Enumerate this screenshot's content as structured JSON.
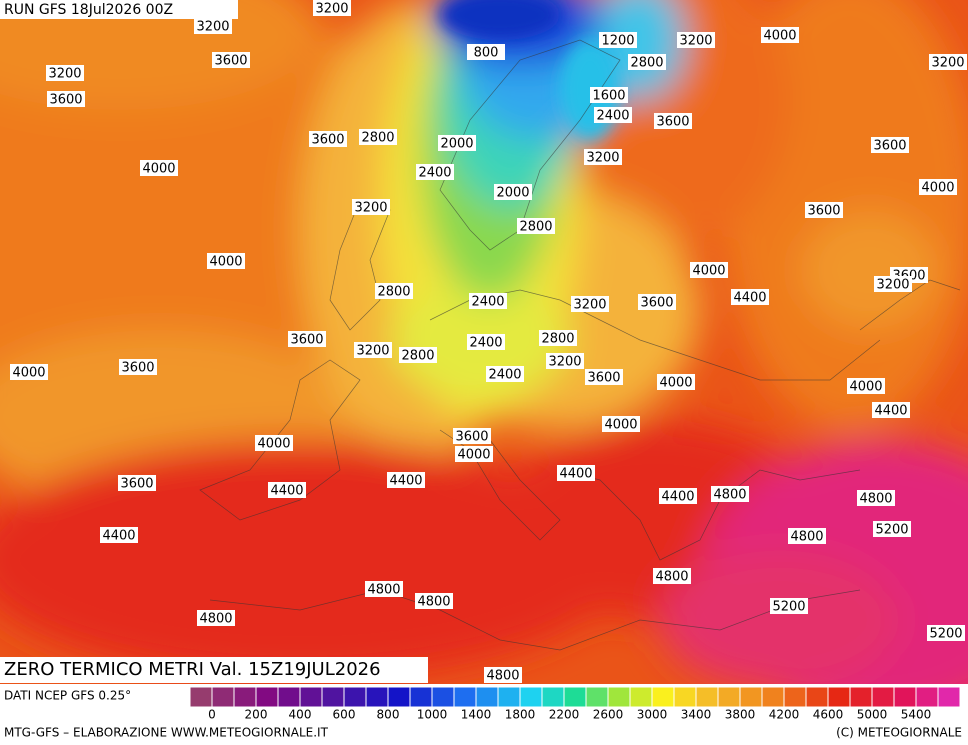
{
  "header": {
    "run": "RUN GFS 18Jul2026 00Z"
  },
  "map": {
    "title": "ZERO TERMICO METRI Val. 15Z19JUL2026",
    "contour_labels": [
      3200,
      3200,
      800,
      1200,
      3200,
      4000,
      3600,
      3200,
      2800,
      3200,
      3600,
      1600,
      2400,
      3600,
      3600,
      2800,
      2000,
      3200,
      3600,
      4000,
      2400,
      2000,
      4000,
      3200,
      3600,
      2800,
      4000,
      4000,
      3600,
      3200,
      2800,
      2400,
      3200,
      3600,
      4400,
      3600,
      2400,
      2800,
      3200,
      2800,
      3200,
      4000,
      3600,
      2400,
      3600,
      4000,
      4000,
      4400,
      4000,
      3600,
      4000,
      4000,
      4400,
      4400,
      3600,
      4400,
      4400,
      4800,
      4800,
      5200,
      4400,
      4800,
      4800,
      4800,
      4800,
      5200,
      4800,
      5200,
      4800
    ]
  },
  "legend": {
    "source": "DATI NCEP GFS 0.25°",
    "ticks": [
      0,
      200,
      400,
      600,
      800,
      1000,
      1400,
      1800,
      2200,
      2600,
      3000,
      3400,
      3800,
      4200,
      4600,
      5000,
      5400
    ]
  },
  "footer": {
    "credit": "MTG-GFS – ELABORAZIONE WWW.METEOGIORNALE.IT",
    "copyright": "(C) METEOGIORNALE"
  }
}
